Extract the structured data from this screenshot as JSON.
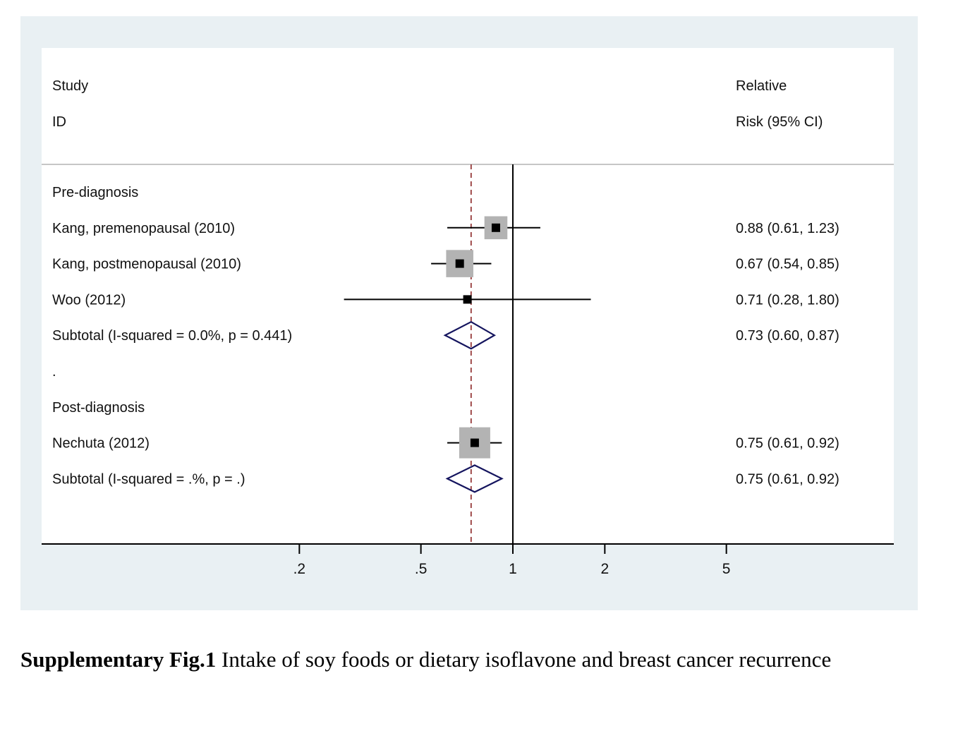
{
  "colors": {
    "outer_background": "#e9f0f3",
    "plot_background": "#ffffff",
    "ci_line": "#000000",
    "weight_box": "#b3b3b3",
    "point_marker": "#000000",
    "diamond": "#14145e",
    "reference_line": "#8b2525",
    "null_line": "#000000"
  },
  "header": {
    "left_line1": "Study",
    "left_line2": "ID",
    "right_line1": "Relative",
    "right_line2": "Risk (95% CI)"
  },
  "chart_data": {
    "type": "forest",
    "x_scale": "log",
    "x_ticks": [
      0.2,
      0.5,
      1,
      2,
      5
    ],
    "x_tick_labels": [
      ".2",
      ".5",
      "1",
      "2",
      "5"
    ],
    "null_value": 1,
    "overall_estimate": 0.73,
    "rows": [
      {
        "kind": "group",
        "label": "Pre-diagnosis"
      },
      {
        "kind": "study",
        "label": "Kang, premenopausal (2010)",
        "rr": 0.88,
        "lo": 0.61,
        "hi": 1.23,
        "weight": 0.35,
        "ci_text": "0.88 (0.61, 1.23)"
      },
      {
        "kind": "study",
        "label": "Kang, postmenopausal (2010)",
        "rr": 0.67,
        "lo": 0.54,
        "hi": 0.85,
        "weight": 0.65,
        "ci_text": "0.67 (0.54, 0.85)"
      },
      {
        "kind": "study",
        "label": "Woo (2012)",
        "rr": 0.71,
        "lo": 0.28,
        "hi": 1.8,
        "weight": 0.0,
        "ci_text": "0.71 (0.28, 1.80)"
      },
      {
        "kind": "subtotal",
        "label": "Subtotal  (I-squared = 0.0%, p = 0.441)",
        "rr": 0.73,
        "lo": 0.6,
        "hi": 0.87,
        "ci_text": "0.73 (0.60, 0.87)"
      },
      {
        "kind": "spacer",
        "label": "."
      },
      {
        "kind": "group",
        "label": "Post-diagnosis"
      },
      {
        "kind": "study",
        "label": "Nechuta (2012)",
        "rr": 0.75,
        "lo": 0.61,
        "hi": 0.92,
        "weight": 1.0,
        "ci_text": "0.75 (0.61, 0.92)"
      },
      {
        "kind": "subtotal",
        "label": "Subtotal  (I-squared = .%, p = .)",
        "rr": 0.75,
        "lo": 0.61,
        "hi": 0.92,
        "ci_text": "0.75 (0.61, 0.92)"
      }
    ]
  },
  "caption": {
    "bold": "Supplementary Fig.1",
    "text": "Intake of soy foods or dietary isoflavone and breast cancer recurrence"
  }
}
